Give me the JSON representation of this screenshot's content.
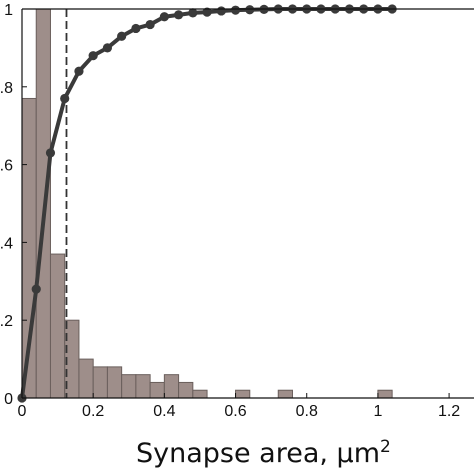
{
  "chart_data": {
    "type": "bar",
    "title": "",
    "xlabel": "Synapse area, μm",
    "xlabel_superscript": "2",
    "ylabel": "",
    "xlim": [
      0,
      1.27
    ],
    "ylim": [
      0,
      1
    ],
    "grid": false,
    "x_ticks": [
      {
        "value": 0,
        "label": "0"
      },
      {
        "value": 0.2,
        "label": "0.2"
      },
      {
        "value": 0.4,
        "label": "0.4"
      },
      {
        "value": 0.6,
        "label": "0.6"
      },
      {
        "value": 0.8,
        "label": "0.8"
      },
      {
        "value": 1.0,
        "label": "1"
      },
      {
        "value": 1.2,
        "label": "1.2"
      }
    ],
    "y_ticks": [
      {
        "value": 0,
        "label": "0"
      },
      {
        "value": 0.2,
        "label": ".2"
      },
      {
        "value": 0.4,
        "label": ".4"
      },
      {
        "value": 0.6,
        "label": ".6"
      },
      {
        "value": 0.8,
        "label": ".8"
      },
      {
        "value": 1,
        "label": "1"
      }
    ],
    "histogram": {
      "bin_width": 0.04,
      "color": "#9e8e8a",
      "edge_color": "#6a5f5c",
      "bins": [
        {
          "x": 0.0,
          "y": 0.77
        },
        {
          "x": 0.04,
          "y": 1.0
        },
        {
          "x": 0.08,
          "y": 0.37
        },
        {
          "x": 0.12,
          "y": 0.2
        },
        {
          "x": 0.16,
          "y": 0.1
        },
        {
          "x": 0.2,
          "y": 0.08
        },
        {
          "x": 0.24,
          "y": 0.08
        },
        {
          "x": 0.28,
          "y": 0.06
        },
        {
          "x": 0.32,
          "y": 0.06
        },
        {
          "x": 0.36,
          "y": 0.04
        },
        {
          "x": 0.4,
          "y": 0.06
        },
        {
          "x": 0.44,
          "y": 0.04
        },
        {
          "x": 0.48,
          "y": 0.02
        },
        {
          "x": 0.52,
          "y": 0.0
        },
        {
          "x": 0.56,
          "y": 0.0
        },
        {
          "x": 0.6,
          "y": 0.02
        },
        {
          "x": 0.64,
          "y": 0.0
        },
        {
          "x": 0.68,
          "y": 0.0
        },
        {
          "x": 0.72,
          "y": 0.02
        },
        {
          "x": 0.76,
          "y": 0.0
        },
        {
          "x": 0.8,
          "y": 0.0
        },
        {
          "x": 0.84,
          "y": 0.0
        },
        {
          "x": 0.88,
          "y": 0.0
        },
        {
          "x": 0.92,
          "y": 0.0
        },
        {
          "x": 0.96,
          "y": 0.0
        },
        {
          "x": 1.0,
          "y": 0.02
        }
      ]
    },
    "cumulative_line": {
      "color": "#3a3a3a",
      "points": [
        {
          "x": 0.0,
          "y": 0.0
        },
        {
          "x": 0.04,
          "y": 0.28
        },
        {
          "x": 0.08,
          "y": 0.63
        },
        {
          "x": 0.12,
          "y": 0.77
        },
        {
          "x": 0.16,
          "y": 0.84
        },
        {
          "x": 0.2,
          "y": 0.88
        },
        {
          "x": 0.24,
          "y": 0.9
        },
        {
          "x": 0.28,
          "y": 0.93
        },
        {
          "x": 0.32,
          "y": 0.95
        },
        {
          "x": 0.36,
          "y": 0.96
        },
        {
          "x": 0.4,
          "y": 0.98
        },
        {
          "x": 0.44,
          "y": 0.985
        },
        {
          "x": 0.48,
          "y": 0.99
        },
        {
          "x": 0.52,
          "y": 0.992
        },
        {
          "x": 0.56,
          "y": 0.995
        },
        {
          "x": 0.6,
          "y": 0.997
        },
        {
          "x": 0.64,
          "y": 0.998
        },
        {
          "x": 0.68,
          "y": 0.999
        },
        {
          "x": 0.72,
          "y": 1.0
        },
        {
          "x": 0.76,
          "y": 1.0
        },
        {
          "x": 0.8,
          "y": 1.0
        },
        {
          "x": 0.84,
          "y": 1.0
        },
        {
          "x": 0.88,
          "y": 1.0
        },
        {
          "x": 0.92,
          "y": 1.0
        },
        {
          "x": 0.96,
          "y": 1.0
        },
        {
          "x": 1.0,
          "y": 1.0
        },
        {
          "x": 1.04,
          "y": 1.0
        }
      ]
    },
    "reference_line": {
      "x": 0.125,
      "style": "dashed",
      "color": "#333333"
    }
  }
}
